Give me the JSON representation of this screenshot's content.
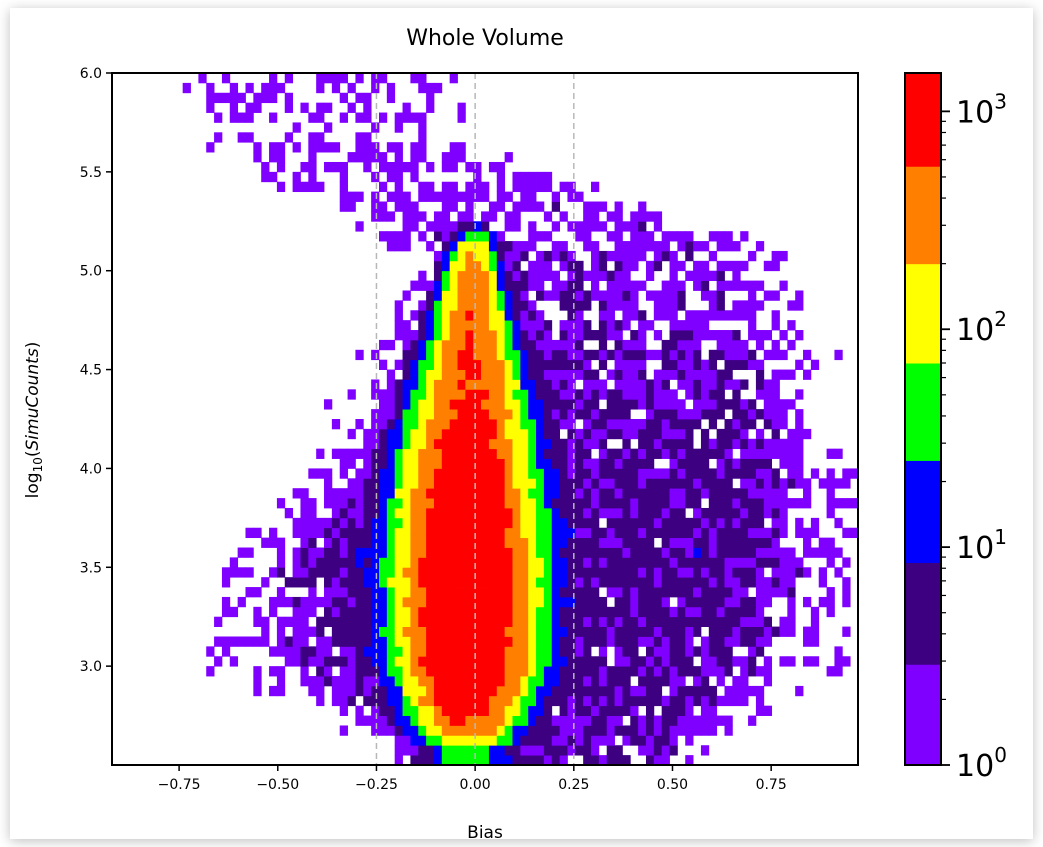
{
  "chart_data": {
    "type": "heatmap",
    "title": "Whole Volume",
    "xlabel": "Bias",
    "ylabel": "log10(SimuCounts)",
    "ylabel_parts": {
      "prefix": "log",
      "sub": "10",
      "var": "SimuCounts"
    },
    "xlim": [
      -0.92,
      0.97
    ],
    "ylim": [
      2.5,
      6.0
    ],
    "x_ticks": [
      -0.75,
      -0.5,
      -0.25,
      0.0,
      0.25,
      0.5,
      0.75
    ],
    "x_tick_labels": [
      "−0.75",
      "−0.50",
      "−0.25",
      "0.00",
      "0.25",
      "0.50",
      "0.75"
    ],
    "y_ticks": [
      3.0,
      3.5,
      4.0,
      4.5,
      5.0,
      5.5,
      6.0
    ],
    "y_tick_labels": [
      "3.0",
      "3.5",
      "4.0",
      "4.5",
      "5.0",
      "5.5",
      "6.0"
    ],
    "reference_lines_x": [
      -0.25,
      0.0,
      0.25
    ],
    "colorbar": {
      "scale": "log",
      "range": [
        1,
        1500
      ],
      "boundaries": [
        1,
        2.9,
        8.5,
        25,
        70,
        200,
        560,
        1500
      ],
      "colors": [
        "#8000ff",
        "#3c0080",
        "#0000ff",
        "#00ff00",
        "#ffff00",
        "#ff8000",
        "#ff0000"
      ],
      "tick_values": [
        1,
        10,
        100,
        1000
      ],
      "tick_labels": [
        {
          "base": "10",
          "exp": "0"
        },
        {
          "base": "10",
          "exp": "1"
        },
        {
          "base": "10",
          "exp": "2"
        },
        {
          "base": "10",
          "exp": "3"
        }
      ]
    },
    "density_model": {
      "core_ridge": [
        {
          "y": 2.6,
          "x": -0.02,
          "half_width": 0.09,
          "peak_count": 40
        },
        {
          "y": 3.0,
          "x": -0.02,
          "half_width": 0.12,
          "peak_count": 2000
        },
        {
          "y": 3.5,
          "x": -0.02,
          "half_width": 0.13,
          "peak_count": 2000
        },
        {
          "y": 4.0,
          "x": -0.02,
          "half_width": 0.12,
          "peak_count": 1200
        },
        {
          "y": 4.5,
          "x": -0.01,
          "half_width": 0.09,
          "peak_count": 600
        },
        {
          "y": 5.0,
          "x": -0.01,
          "half_width": 0.05,
          "peak_count": 400
        },
        {
          "y": 5.2,
          "x": 0.0,
          "half_width": 0.04,
          "peak_count": 5
        }
      ],
      "halo": [
        {
          "y": 2.6,
          "left": -0.25,
          "right": 0.6,
          "count": 3
        },
        {
          "y": 3.0,
          "left": -0.7,
          "right": 0.95,
          "count": 3
        },
        {
          "y": 3.6,
          "left": -0.62,
          "right": 0.97,
          "count": 4
        },
        {
          "y": 4.0,
          "left": -0.4,
          "right": 0.97,
          "count": 3
        },
        {
          "y": 4.6,
          "left": -0.35,
          "right": 0.95,
          "count": 2
        },
        {
          "y": 5.1,
          "left": -0.3,
          "right": 0.9,
          "count": 1.5
        },
        {
          "y": 5.7,
          "left": -0.9,
          "right": 0.1,
          "count": 1
        }
      ]
    }
  }
}
